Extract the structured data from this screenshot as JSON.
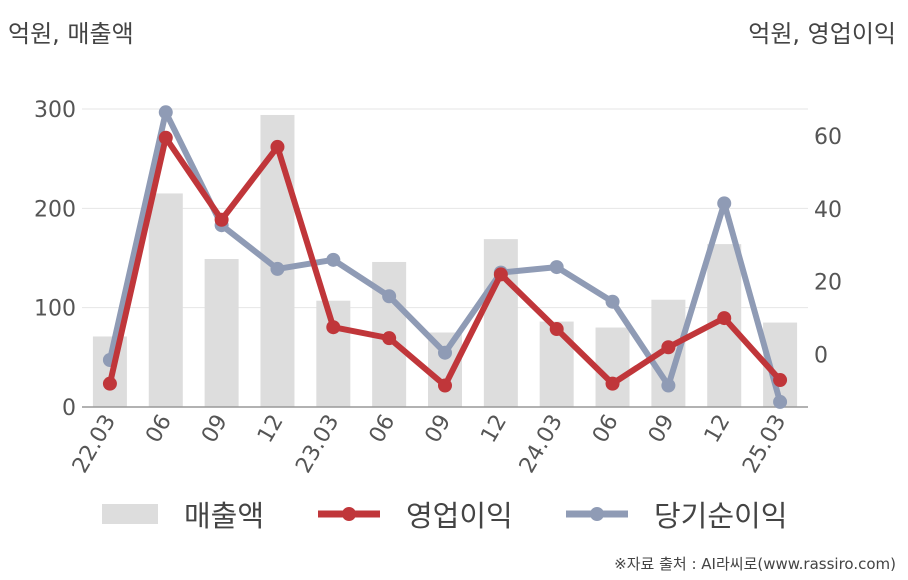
{
  "header": {
    "left_unit": "억원, 매출액",
    "right_unit": "억원, 영업이익"
  },
  "source": "※자료 출처 : AI라씨로(www.rassiro.com)",
  "chart_data": {
    "type": "bar",
    "categories": [
      "22.03",
      "06",
      "09",
      "12",
      "23.03",
      "06",
      "09",
      "12",
      "24.03",
      "06",
      "09",
      "12",
      "25.03"
    ],
    "y_left": {
      "label": "억원, 매출액",
      "ticks": [
        0,
        100,
        200,
        300
      ],
      "range": [
        0,
        300
      ]
    },
    "y_right": {
      "label": "억원, 영업이익",
      "ticks": [
        0,
        20,
        40,
        60
      ],
      "range": [
        -14.4,
        67.4
      ]
    },
    "grid": true,
    "legend_position": "bottom",
    "series": [
      {
        "name": "매출액",
        "type": "bar",
        "axis": "left",
        "color": "#dddddd",
        "values": [
          71,
          215,
          149,
          294,
          107,
          146,
          75,
          169,
          86,
          80,
          108,
          164,
          85
        ]
      },
      {
        "name": "영업이익",
        "type": "line",
        "axis": "right",
        "color": "#c0363a",
        "values": [
          -8,
          59.5,
          37,
          57,
          7.5,
          4.5,
          -8.5,
          22,
          7,
          -8,
          2,
          10,
          -7
        ]
      },
      {
        "name": "당기순이익",
        "type": "line",
        "axis": "right",
        "color": "#8f9bb5",
        "values": [
          -1.5,
          66.5,
          35.5,
          23.5,
          26,
          16,
          0.5,
          22.5,
          24,
          14.5,
          -8.5,
          41.5,
          -13
        ]
      }
    ]
  }
}
